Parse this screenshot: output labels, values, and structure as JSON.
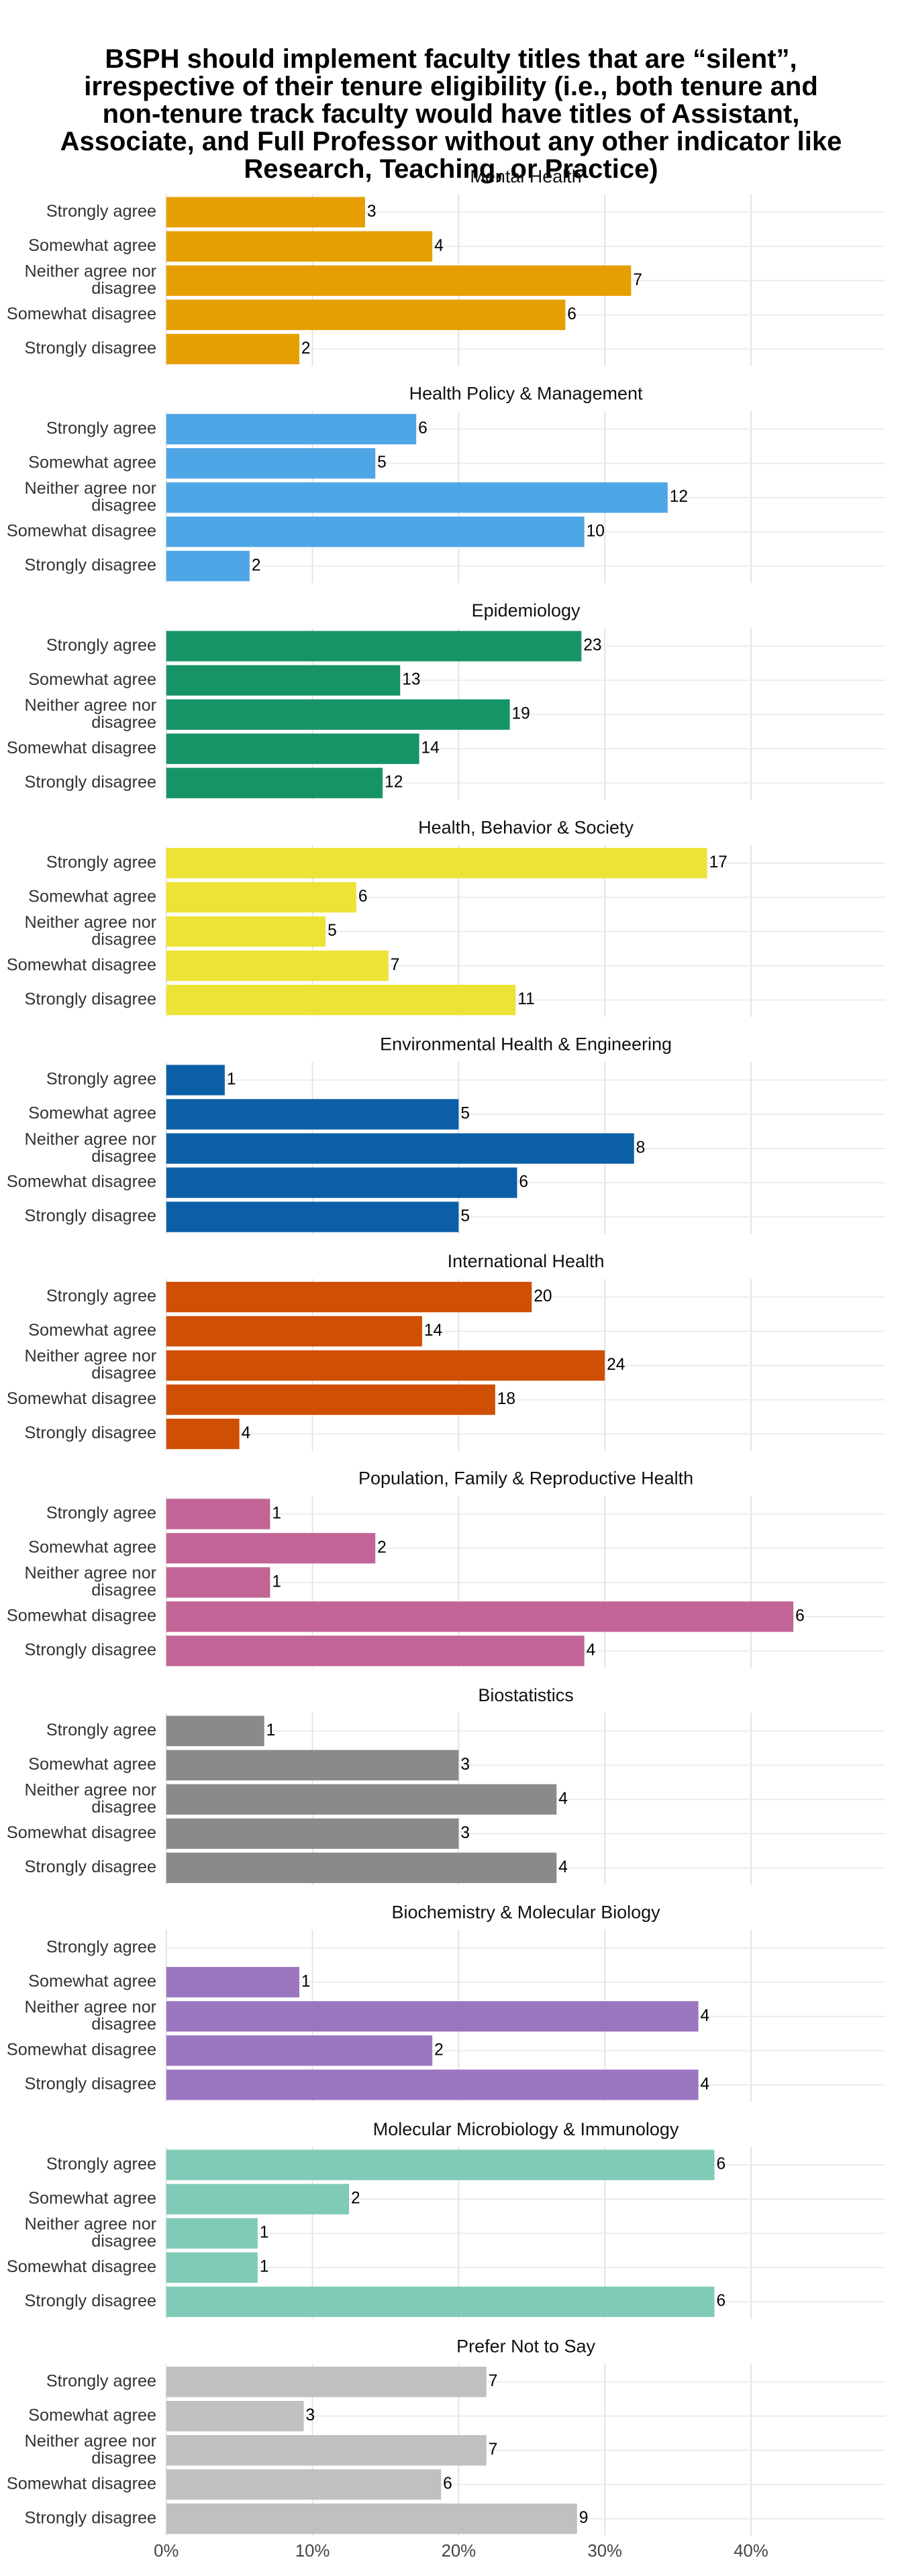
{
  "title": "BSPH should implement faculty titles that are “silent”, irrespective of their tenure eligibility (i.e., both tenure and non-tenure track faculty would have titles of Assistant, Associate, and Full Professor without any other indicator like Research, Teaching, or Practice)",
  "chart_data": [
    {
      "type": "bar",
      "title": "Mental Health",
      "color": "#e69f00",
      "categories": [
        "Strongly agree",
        "Somewhat agree",
        "Neither agree nor disagree",
        "Somewhat disagree",
        "Strongly disagree"
      ],
      "values": [
        13.6,
        18.2,
        31.8,
        27.3,
        9.1
      ],
      "counts": [
        3,
        4,
        7,
        6,
        2
      ],
      "xlim": [
        0,
        49.2
      ],
      "xticks": [
        {
          "value": 0,
          "label": "0%"
        },
        {
          "value": 10,
          "label": "10%"
        },
        {
          "value": 20,
          "label": "20%"
        },
        {
          "value": 30,
          "label": "30%"
        },
        {
          "value": 40,
          "label": "40%"
        }
      ]
    },
    {
      "type": "bar",
      "title": "Health Policy & Management",
      "color": "#4fa6e6",
      "categories": [
        "Strongly agree",
        "Somewhat agree",
        "Neither agree nor disagree",
        "Somewhat disagree",
        "Strongly disagree"
      ],
      "values": [
        17.1,
        14.3,
        34.3,
        28.6,
        5.7
      ],
      "counts": [
        6,
        5,
        12,
        10,
        2
      ],
      "xlim": [
        0,
        49.2
      ],
      "xticks": [
        {
          "value": 0,
          "label": "0%"
        },
        {
          "value": 10,
          "label": "10%"
        },
        {
          "value": 20,
          "label": "20%"
        },
        {
          "value": 30,
          "label": "30%"
        },
        {
          "value": 40,
          "label": "40%"
        }
      ]
    },
    {
      "type": "bar",
      "title": "Epidemiology",
      "color": "#169466",
      "categories": [
        "Strongly agree",
        "Somewhat agree",
        "Neither agree nor disagree",
        "Somewhat disagree",
        "Strongly disagree"
      ],
      "values": [
        28.4,
        16.0,
        23.5,
        17.3,
        14.8
      ],
      "counts": [
        23,
        13,
        19,
        14,
        12
      ],
      "xlim": [
        0,
        49.2
      ],
      "xticks": [
        {
          "value": 0,
          "label": "0%"
        },
        {
          "value": 10,
          "label": "10%"
        },
        {
          "value": 20,
          "label": "20%"
        },
        {
          "value": 30,
          "label": "30%"
        },
        {
          "value": 40,
          "label": "40%"
        }
      ]
    },
    {
      "type": "bar",
      "title": "Health, Behavior & Society",
      "color": "#ede337",
      "categories": [
        "Strongly agree",
        "Somewhat agree",
        "Neither agree nor disagree",
        "Somewhat disagree",
        "Strongly disagree"
      ],
      "values": [
        37.0,
        13.0,
        10.9,
        15.2,
        23.9
      ],
      "counts": [
        17,
        6,
        5,
        7,
        11
      ],
      "xlim": [
        0,
        49.2
      ],
      "xticks": [
        {
          "value": 0,
          "label": "0%"
        },
        {
          "value": 10,
          "label": "10%"
        },
        {
          "value": 20,
          "label": "20%"
        },
        {
          "value": 30,
          "label": "30%"
        },
        {
          "value": 40,
          "label": "40%"
        }
      ]
    },
    {
      "type": "bar",
      "title": "Environmental Health & Engineering",
      "color": "#0b5fa6",
      "categories": [
        "Strongly agree",
        "Somewhat agree",
        "Neither agree nor disagree",
        "Somewhat disagree",
        "Strongly disagree"
      ],
      "values": [
        4.0,
        20.0,
        32.0,
        24.0,
        20.0
      ],
      "counts": [
        1,
        5,
        8,
        6,
        5
      ],
      "xlim": [
        0,
        49.2
      ],
      "xticks": [
        {
          "value": 0,
          "label": "0%"
        },
        {
          "value": 10,
          "label": "10%"
        },
        {
          "value": 20,
          "label": "20%"
        },
        {
          "value": 30,
          "label": "30%"
        },
        {
          "value": 40,
          "label": "40%"
        }
      ]
    },
    {
      "type": "bar",
      "title": "International Health",
      "color": "#cf4f04",
      "categories": [
        "Strongly agree",
        "Somewhat agree",
        "Neither agree nor disagree",
        "Somewhat disagree",
        "Strongly disagree"
      ],
      "values": [
        25.0,
        17.5,
        30.0,
        22.5,
        5.0
      ],
      "counts": [
        20,
        14,
        24,
        18,
        4
      ],
      "xlim": [
        0,
        49.2
      ],
      "xticks": [
        {
          "value": 0,
          "label": "0%"
        },
        {
          "value": 10,
          "label": "10%"
        },
        {
          "value": 20,
          "label": "20%"
        },
        {
          "value": 30,
          "label": "30%"
        },
        {
          "value": 40,
          "label": "40%"
        }
      ]
    },
    {
      "type": "bar",
      "title": "Population, Family & Reproductive Health",
      "color": "#c26496",
      "categories": [
        "Strongly agree",
        "Somewhat agree",
        "Neither agree nor disagree",
        "Somewhat disagree",
        "Strongly disagree"
      ],
      "values": [
        7.1,
        14.3,
        7.1,
        42.9,
        28.6
      ],
      "counts": [
        1,
        2,
        1,
        6,
        4
      ],
      "xlim": [
        0,
        49.2
      ],
      "xticks": [
        {
          "value": 0,
          "label": "0%"
        },
        {
          "value": 10,
          "label": "10%"
        },
        {
          "value": 20,
          "label": "20%"
        },
        {
          "value": 30,
          "label": "30%"
        },
        {
          "value": 40,
          "label": "40%"
        }
      ]
    },
    {
      "type": "bar",
      "title": "Biostatistics",
      "color": "#8a8a8a",
      "categories": [
        "Strongly agree",
        "Somewhat agree",
        "Neither agree nor disagree",
        "Somewhat disagree",
        "Strongly disagree"
      ],
      "values": [
        6.7,
        20.0,
        26.7,
        20.0,
        26.7
      ],
      "counts": [
        1,
        3,
        4,
        3,
        4
      ],
      "xlim": [
        0,
        49.2
      ],
      "xticks": [
        {
          "value": 0,
          "label": "0%"
        },
        {
          "value": 10,
          "label": "10%"
        },
        {
          "value": 20,
          "label": "20%"
        },
        {
          "value": 30,
          "label": "30%"
        },
        {
          "value": 40,
          "label": "40%"
        }
      ]
    },
    {
      "type": "bar",
      "title": "Biochemistry & Molecular Biology",
      "color": "#9b76c0",
      "categories": [
        "Strongly agree",
        "Somewhat agree",
        "Neither agree nor disagree",
        "Somewhat disagree",
        "Strongly disagree"
      ],
      "values": [
        0,
        9.1,
        36.4,
        18.2,
        36.4
      ],
      "counts": [
        null,
        1,
        4,
        2,
        4
      ],
      "xlim": [
        0,
        49.2
      ],
      "xticks": [
        {
          "value": 0,
          "label": "0%"
        },
        {
          "value": 10,
          "label": "10%"
        },
        {
          "value": 20,
          "label": "20%"
        },
        {
          "value": 30,
          "label": "30%"
        },
        {
          "value": 40,
          "label": "40%"
        }
      ]
    },
    {
      "type": "bar",
      "title": "Molecular Microbiology & Immunology",
      "color": "#80cbb8",
      "categories": [
        "Strongly agree",
        "Somewhat agree",
        "Neither agree nor disagree",
        "Somewhat disagree",
        "Strongly disagree"
      ],
      "values": [
        37.5,
        12.5,
        6.25,
        6.25,
        37.5
      ],
      "counts": [
        6,
        2,
        1,
        1,
        6
      ],
      "xlim": [
        0,
        49.2
      ],
      "xticks": [
        {
          "value": 0,
          "label": "0%"
        },
        {
          "value": 10,
          "label": "10%"
        },
        {
          "value": 20,
          "label": "20%"
        },
        {
          "value": 30,
          "label": "30%"
        },
        {
          "value": 40,
          "label": "40%"
        }
      ]
    },
    {
      "type": "bar",
      "title": "Prefer Not to Say",
      "color": "#c0c0c0",
      "categories": [
        "Strongly agree",
        "Somewhat agree",
        "Neither agree nor disagree",
        "Somewhat disagree",
        "Strongly disagree"
      ],
      "values": [
        21.9,
        9.4,
        21.9,
        18.8,
        28.1
      ],
      "counts": [
        7,
        3,
        7,
        6,
        9
      ],
      "xlim": [
        0,
        49.2
      ],
      "xticks": [
        {
          "value": 0,
          "label": "0%"
        },
        {
          "value": 10,
          "label": "10%"
        },
        {
          "value": 20,
          "label": "20%"
        },
        {
          "value": 30,
          "label": "30%"
        },
        {
          "value": 40,
          "label": "40%"
        }
      ]
    }
  ]
}
